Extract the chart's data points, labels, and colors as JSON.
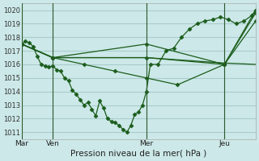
{
  "xlabel": "Pression niveau de la mer( hPa )",
  "bg_color": "#cce8e8",
  "grid_color": "#aacccc",
  "line_color": "#1a5c1a",
  "ylim": [
    1010.5,
    1020.5
  ],
  "yticks": [
    1011,
    1012,
    1013,
    1014,
    1015,
    1016,
    1017,
    1018,
    1019,
    1020
  ],
  "day_labels": [
    "Mar",
    "Ven",
    "Mer",
    "Jeu"
  ],
  "day_positions": [
    0,
    48,
    192,
    312
  ],
  "total_hours": 360,
  "series": [
    {
      "x": [
        0,
        6,
        12,
        18,
        24,
        30,
        36,
        42,
        48,
        54,
        60,
        66,
        72,
        78,
        84,
        90,
        96,
        102,
        108,
        114,
        120,
        126,
        132,
        138,
        144,
        150,
        156,
        162,
        168,
        174,
        180,
        186,
        192,
        198,
        210,
        222,
        234,
        246,
        258,
        270,
        282,
        294,
        306,
        318,
        330,
        342,
        354,
        360
      ],
      "y": [
        1017.5,
        1017.7,
        1017.6,
        1017.3,
        1016.6,
        1016.0,
        1015.9,
        1015.8,
        1015.9,
        1015.6,
        1015.5,
        1015.0,
        1014.8,
        1014.1,
        1013.8,
        1013.4,
        1013.0,
        1013.2,
        1012.7,
        1012.2,
        1013.3,
        1012.8,
        1012.0,
        1011.8,
        1011.7,
        1011.5,
        1011.2,
        1011.0,
        1011.5,
        1012.3,
        1012.5,
        1013.0,
        1014.0,
        1016.0,
        1016.0,
        1017.0,
        1017.2,
        1018.0,
        1018.6,
        1019.0,
        1019.2,
        1019.3,
        1019.5,
        1019.3,
        1019.0,
        1019.2,
        1019.6,
        1020.0
      ],
      "marker": "D",
      "markersize": 2.5
    },
    {
      "x": [
        0,
        48,
        192,
        312,
        360
      ],
      "y": [
        1017.5,
        1016.5,
        1016.5,
        1016.1,
        1016.0
      ],
      "marker": null,
      "markersize": 0
    },
    {
      "x": [
        0,
        48,
        96,
        144,
        192,
        240,
        312,
        360
      ],
      "y": [
        1017.5,
        1016.5,
        1016.0,
        1015.5,
        1015.0,
        1014.5,
        1016.0,
        1019.8
      ],
      "marker": "D",
      "markersize": 2.5
    },
    {
      "x": [
        0,
        48,
        192,
        312,
        360
      ],
      "y": [
        1017.5,
        1016.5,
        1017.5,
        1016.0,
        1020.0
      ],
      "marker": "D",
      "markersize": 2.5
    },
    {
      "x": [
        0,
        48,
        192,
        312,
        360
      ],
      "y": [
        1017.5,
        1016.5,
        1016.5,
        1016.0,
        1019.2
      ],
      "marker": "D",
      "markersize": 2.5
    }
  ]
}
